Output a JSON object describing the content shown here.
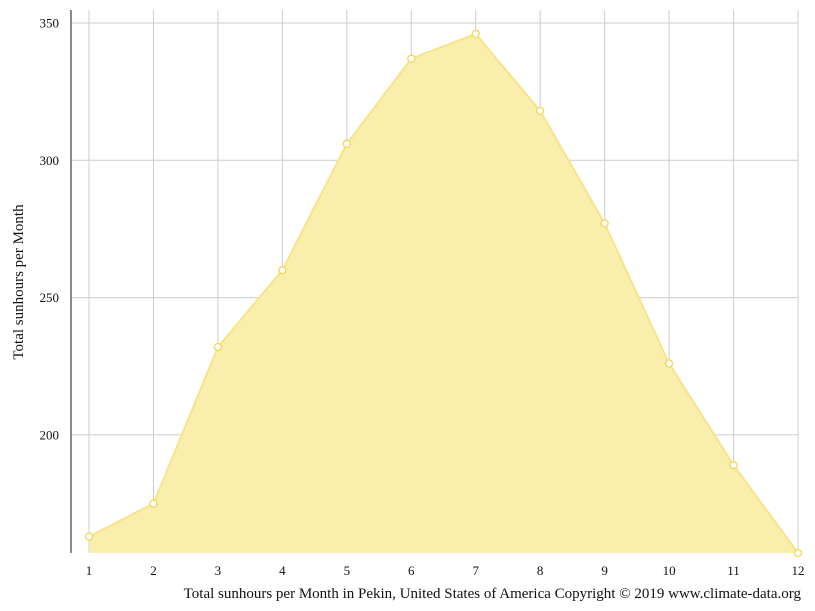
{
  "chart_data": {
    "type": "area",
    "x": [
      1,
      2,
      3,
      4,
      5,
      6,
      7,
      8,
      9,
      10,
      11,
      12
    ],
    "x_tick_labels": [
      "1",
      "2",
      "3",
      "4",
      "5",
      "6",
      "7",
      "8",
      "9",
      "10",
      "11",
      "12"
    ],
    "series": [
      {
        "values": [
          163,
          175,
          232,
          260,
          306,
          337,
          346,
          318,
          277,
          226,
          189,
          157
        ]
      }
    ],
    "ylabel": "Total sunhours per Month",
    "xlabel": "",
    "caption": "Total sunhours per Month in Pekin, United States of America Copyright © 2019 www.climate-data.org",
    "y_ticks": [
      200,
      250,
      300,
      350
    ],
    "y_tick_labels": [
      "200",
      "250",
      "300",
      "350"
    ],
    "ylim": [
      157,
      354
    ],
    "xlim": [
      1,
      12
    ],
    "grid": true,
    "colors": {
      "fill": "#f9eeac",
      "line": "#f7e48a",
      "marker_fill": "#ffffff",
      "marker_stroke": "#f2d655",
      "grid": "#cccccc",
      "axis": "#666666"
    }
  }
}
